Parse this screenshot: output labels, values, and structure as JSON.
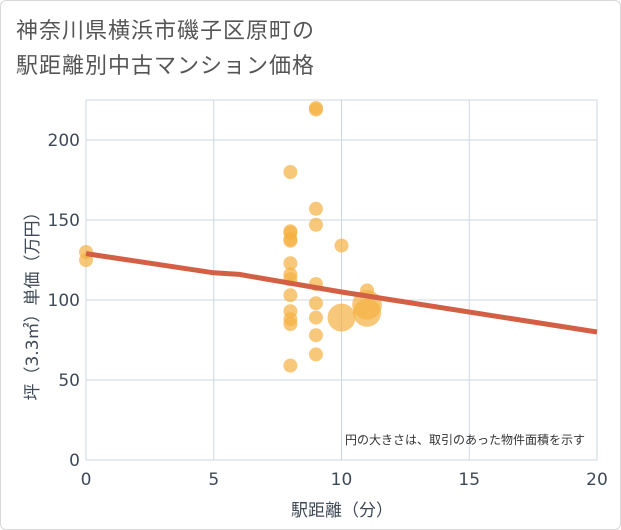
{
  "title_line1": "神奈川県横浜市磯子区原町の",
  "title_line2": "駅距離別中古マンション価格",
  "chart_data": {
    "type": "scatter",
    "title": "神奈川県横浜市磯子区原町の駅距離別中古マンション価格",
    "xlabel": "駅距離（分）",
    "ylabel": "坪（3.3㎡）単価（万円）",
    "xlim": [
      0,
      20
    ],
    "ylim": [
      0,
      225
    ],
    "xticks": [
      "0",
      "5",
      "10",
      "15",
      "20"
    ],
    "yticks": [
      "0",
      "50",
      "100",
      "150",
      "200"
    ],
    "grid": true,
    "note": "円の大きさは、取引のあった物件面積を示す",
    "points": [
      {
        "x": 0,
        "y": 130,
        "size": 1
      },
      {
        "x": 0,
        "y": 125,
        "size": 1
      },
      {
        "x": 8,
        "y": 180,
        "size": 1
      },
      {
        "x": 8,
        "y": 143,
        "size": 1
      },
      {
        "x": 8,
        "y": 142,
        "size": 1
      },
      {
        "x": 8,
        "y": 138,
        "size": 1
      },
      {
        "x": 8,
        "y": 137,
        "size": 1
      },
      {
        "x": 8,
        "y": 123,
        "size": 1
      },
      {
        "x": 8,
        "y": 116,
        "size": 1
      },
      {
        "x": 8,
        "y": 113,
        "size": 1
      },
      {
        "x": 8,
        "y": 103,
        "size": 1
      },
      {
        "x": 8,
        "y": 93,
        "size": 1
      },
      {
        "x": 8,
        "y": 88,
        "size": 1
      },
      {
        "x": 8,
        "y": 85,
        "size": 1
      },
      {
        "x": 8,
        "y": 59,
        "size": 1
      },
      {
        "x": 9,
        "y": 220,
        "size": 1
      },
      {
        "x": 9,
        "y": 219,
        "size": 1
      },
      {
        "x": 9,
        "y": 157,
        "size": 1
      },
      {
        "x": 9,
        "y": 147,
        "size": 1
      },
      {
        "x": 9,
        "y": 110,
        "size": 1
      },
      {
        "x": 9,
        "y": 98,
        "size": 1
      },
      {
        "x": 9,
        "y": 89,
        "size": 1
      },
      {
        "x": 9,
        "y": 78,
        "size": 1
      },
      {
        "x": 9,
        "y": 66,
        "size": 1
      },
      {
        "x": 10,
        "y": 134,
        "size": 1
      },
      {
        "x": 10,
        "y": 89,
        "size": 4
      },
      {
        "x": 11,
        "y": 106,
        "size": 1
      },
      {
        "x": 11,
        "y": 97,
        "size": 4.5
      },
      {
        "x": 11,
        "y": 92,
        "size": 4
      }
    ],
    "trendline": {
      "x": [
        0,
        5,
        6,
        10,
        20
      ],
      "y": [
        129,
        117,
        116,
        105,
        80
      ]
    },
    "colors": {
      "point": "#f5b041",
      "trend": "#d35f45",
      "grid": "#cdd7e1"
    }
  }
}
